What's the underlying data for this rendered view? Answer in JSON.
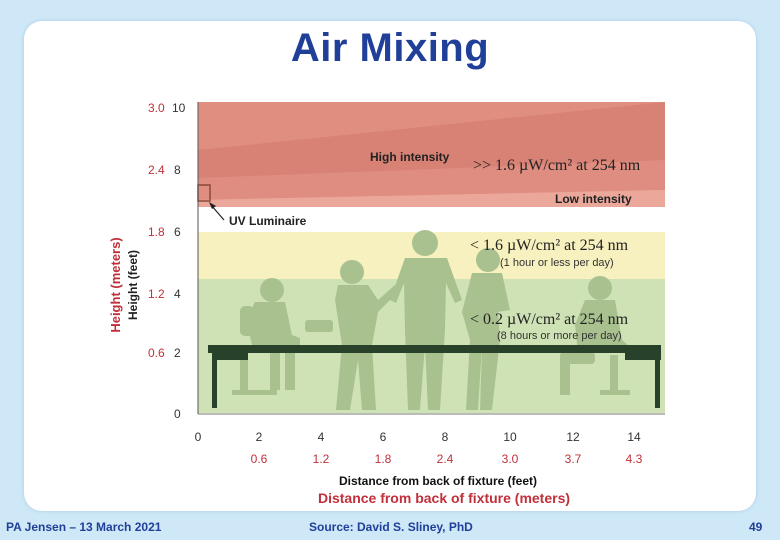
{
  "slide": {
    "title": "Air Mixing",
    "footer_left": "PA Jensen – 13 March 2021",
    "footer_center": "Source: David S. Sliney, PhD",
    "page_number": "49"
  },
  "figure": {
    "y_axis_feet_label": "Height (feet)",
    "y_axis_meters_label": "Height (meters)",
    "y_ticks_feet": [
      "10",
      "8",
      "6",
      "4",
      "2",
      "0"
    ],
    "y_ticks_meters": [
      "3.0",
      "2.4",
      "1.8",
      "1.2",
      "0.6"
    ],
    "x_ticks_feet": [
      "0",
      "2",
      "4",
      "6",
      "8",
      "10",
      "12",
      "14"
    ],
    "x_ticks_meters": [
      "0.6",
      "1.2",
      "1.8",
      "2.4",
      "3.0",
      "3.7",
      "4.3"
    ],
    "x_axis_feet_label": "Distance from back of fixture (feet)",
    "x_axis_meters_label": "Distance from back of fixture (meters)",
    "labels": {
      "high_intensity": "High intensity",
      "low_intensity": "Low intensity",
      "uv_luminaire": "UV Luminaire",
      "zone_upper": ">> 1.6 µW/cm² at 254 nm",
      "zone_middle": "< 1.6 µW/cm² at 254 nm",
      "zone_middle_note": "(1 hour or less per day)",
      "zone_lower": "< 0.2 µW/cm² at 254 nm",
      "zone_lower_note": "(8 hours or more per day)"
    },
    "colors": {
      "upper_zone": "#f0a898",
      "middle_zone": "#f7f1bf",
      "lower_zone": "#cfe2b6",
      "silhouettes": "#a9c18f",
      "desk": "#27412a",
      "red_labels": "#c0303a"
    }
  }
}
